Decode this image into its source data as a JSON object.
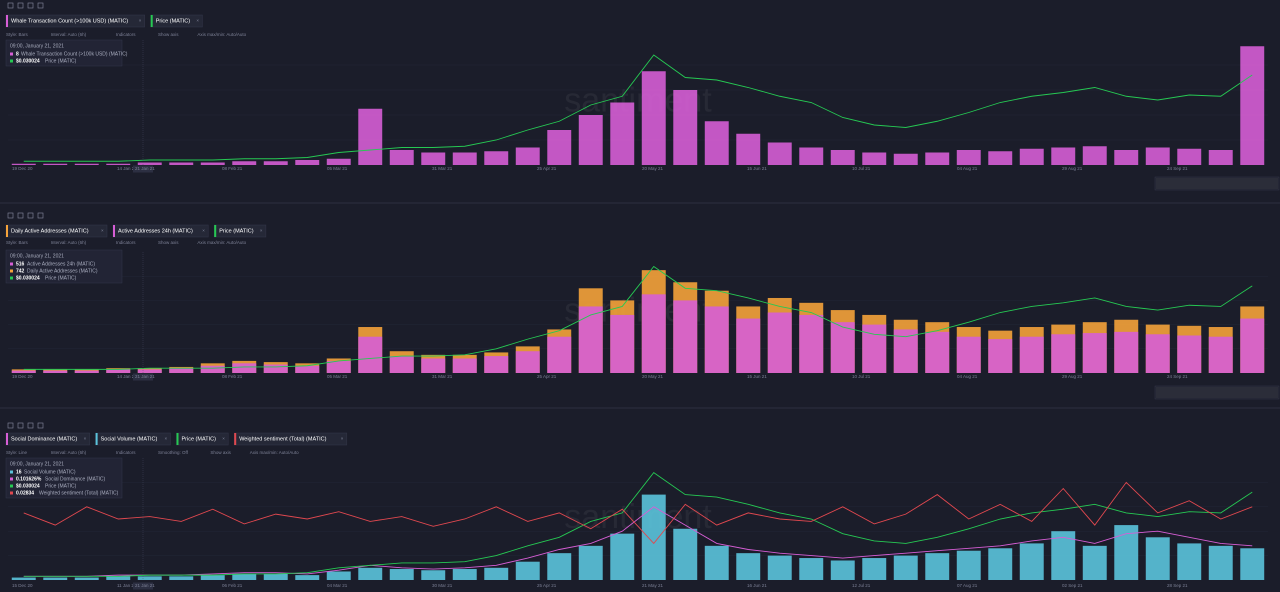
{
  "chart_data": [
    {
      "type": "bar",
      "watermark": "santiment",
      "controls": [
        "Style: Bars",
        "Interval: Auto (6h)",
        "Indicators",
        "Show axis",
        "Axis max/min: Auto/Auto"
      ],
      "tooltip": {
        "date": "09:00, January 21, 2021",
        "rows": [
          {
            "value": "8",
            "label": "Whale Transaction Count (>100k USD) (MATIC)"
          },
          {
            "value": "$0.030024",
            "label": "Price (MATIC)"
          }
        ]
      },
      "x_labels": [
        "19 Dec 20",
        "14 Jan 21",
        "08 Feb 21",
        "05 Mar 21",
        "31 Mar 21",
        "25 Apr 21",
        "20 May 21",
        "15 Jun 21",
        "10 Jul 21",
        "04 Aug 21",
        "29 Aug 21",
        "24 Sep 21"
      ],
      "hover_date": "21 Jan 21",
      "ylim": [
        0,
        100
      ],
      "series": [
        {
          "name": "Whale Transaction Count (>100k USD) (MATIC)",
          "color": "#d65ed5",
          "mark": "bar",
          "values": [
            1,
            1,
            1,
            1,
            2,
            2,
            2,
            3,
            3,
            4,
            5,
            45,
            12,
            10,
            10,
            11,
            14,
            28,
            40,
            50,
            75,
            60,
            35,
            25,
            18,
            14,
            12,
            10,
            9,
            10,
            12,
            11,
            13,
            14,
            15,
            12,
            14,
            13,
            12,
            95
          ]
        },
        {
          "name": "Price (MATIC)",
          "color": "#26c953",
          "mark": "line",
          "values": [
            3,
            3,
            3,
            3,
            4,
            4,
            4,
            5,
            5,
            6,
            10,
            12,
            14,
            14,
            15,
            20,
            28,
            35,
            48,
            55,
            88,
            70,
            68,
            62,
            55,
            50,
            38,
            32,
            30,
            35,
            42,
            50,
            55,
            58,
            62,
            55,
            52,
            56,
            55,
            72
          ]
        }
      ]
    },
    {
      "type": "bar",
      "watermark": "santiment",
      "controls": [
        "Style: Bars",
        "Interval: Auto (6h)",
        "Indicators",
        "Show axis",
        "Axis max/min: Auto/Auto"
      ],
      "tooltip": {
        "date": "09:00, January 21, 2021",
        "rows": [
          {
            "value": "516",
            "label": "Active Addresses 24h (MATIC)"
          },
          {
            "value": "742",
            "label": "Daily Active Addresses (MATIC)"
          },
          {
            "value": "$0.030024",
            "label": "Price (MATIC)"
          }
        ]
      },
      "x_labels": [
        "19 Dec 20",
        "14 Jan 21",
        "08 Feb 21",
        "05 Mar 21",
        "31 Mar 21",
        "25 Apr 21",
        "20 May 21",
        "15 Jun 21",
        "10 Jul 21",
        "04 Aug 21",
        "29 Aug 21",
        "24 Sep 21"
      ],
      "hover_date": "21 Jan 21",
      "ylim": [
        0,
        100
      ],
      "series": [
        {
          "name": "Daily Active Addresses (MATIC)",
          "color": "#f5a33a",
          "mark": "bar",
          "values": [
            3,
            3,
            3,
            4,
            4,
            5,
            8,
            10,
            9,
            8,
            12,
            38,
            18,
            15,
            15,
            17,
            22,
            36,
            70,
            60,
            85,
            75,
            68,
            55,
            62,
            58,
            52,
            48,
            44,
            42,
            38,
            35,
            38,
            40,
            42,
            44,
            40,
            39,
            38,
            55
          ]
        },
        {
          "name": "Active Addresses 24h (MATIC)",
          "color": "#d65ed5",
          "mark": "bar",
          "values": [
            2,
            2,
            2,
            3,
            3,
            4,
            6,
            8,
            7,
            6,
            10,
            30,
            14,
            12,
            12,
            14,
            18,
            30,
            55,
            48,
            65,
            60,
            55,
            45,
            50,
            48,
            42,
            40,
            36,
            34,
            30,
            28,
            30,
            32,
            33,
            34,
            32,
            31,
            30,
            45
          ]
        },
        {
          "name": "Price (MATIC)",
          "color": "#26c953",
          "mark": "line",
          "values": [
            3,
            3,
            3,
            3,
            4,
            4,
            4,
            5,
            5,
            6,
            10,
            12,
            14,
            14,
            15,
            20,
            28,
            35,
            48,
            55,
            88,
            70,
            68,
            62,
            55,
            50,
            38,
            32,
            30,
            35,
            42,
            50,
            55,
            58,
            62,
            55,
            52,
            56,
            55,
            72
          ]
        }
      ]
    },
    {
      "type": "line",
      "watermark": "santiment",
      "controls": [
        "Style: Line",
        "Interval: Auto (6h)",
        "Indicators",
        "Smoothing: Off",
        "Show axis",
        "Axis max/min: Auto/Auto"
      ],
      "tooltip": {
        "date": "09:00, January 21, 2021",
        "rows": [
          {
            "value": "16",
            "label": "Social Volume (MATIC)"
          },
          {
            "value": "0.101626%",
            "label": "Social Dominance (MATIC)"
          },
          {
            "value": "$0.030024",
            "label": "Price (MATIC)"
          },
          {
            "value": "0.02834",
            "label": "Weighted sentiment (Total) (MATIC)"
          }
        ]
      },
      "x_labels": [
        "15 Dec 20",
        "11 Jan 21",
        "06 Feb 21",
        "04 Mar 21",
        "30 Mar 21",
        "25 Apr 21",
        "21 May 21",
        "16 Jun 21",
        "12 Jul 21",
        "07 Aug 21",
        "02 Sep 21",
        "28 Sep 21"
      ],
      "hover_date": "21 Jan 21",
      "ylim": [
        0,
        100
      ],
      "series": [
        {
          "name": "Social Dominance (MATIC)",
          "color": "#d65ed5",
          "mark": "line",
          "values": [
            3,
            3,
            3,
            4,
            4,
            4,
            5,
            6,
            6,
            5,
            8,
            12,
            10,
            9,
            10,
            12,
            18,
            25,
            30,
            40,
            60,
            45,
            30,
            25,
            22,
            20,
            18,
            20,
            22,
            24,
            26,
            28,
            32,
            35,
            30,
            38,
            40,
            35,
            30,
            28
          ]
        },
        {
          "name": "Social Volume (MATIC)",
          "color": "#5bc4dc",
          "mark": "bar",
          "values": [
            2,
            2,
            2,
            3,
            3,
            3,
            4,
            5,
            5,
            4,
            7,
            10,
            9,
            8,
            9,
            10,
            15,
            22,
            28,
            38,
            70,
            42,
            28,
            22,
            20,
            18,
            16,
            18,
            20,
            22,
            24,
            26,
            30,
            40,
            28,
            45,
            35,
            30,
            28,
            26
          ]
        },
        {
          "name": "Price (MATIC)",
          "color": "#26c953",
          "mark": "line",
          "values": [
            3,
            3,
            3,
            3,
            4,
            4,
            4,
            5,
            5,
            6,
            10,
            12,
            14,
            14,
            15,
            20,
            28,
            35,
            48,
            55,
            88,
            70,
            68,
            62,
            55,
            50,
            38,
            32,
            30,
            35,
            42,
            50,
            55,
            58,
            62,
            55,
            52,
            56,
            55,
            72
          ]
        },
        {
          "name": "Weighted sentiment (Total) (MATIC)",
          "color": "#e0484f",
          "mark": "line",
          "values": [
            55,
            45,
            60,
            50,
            52,
            48,
            58,
            46,
            54,
            50,
            56,
            48,
            52,
            44,
            50,
            60,
            48,
            55,
            42,
            58,
            30,
            62,
            45,
            55,
            50,
            48,
            60,
            46,
            54,
            70,
            50,
            62,
            48,
            75,
            45,
            80,
            55,
            65,
            50,
            60
          ]
        }
      ]
    }
  ]
}
